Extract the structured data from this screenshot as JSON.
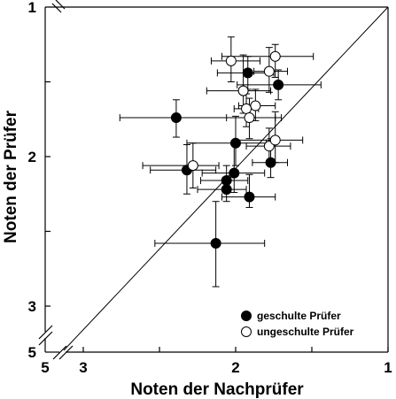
{
  "chart_data": {
    "type": "scatter",
    "title": "",
    "xlabel": "Noten der Nachprüfer",
    "ylabel": "Noten der Prüfer",
    "x_reversed": true,
    "y_reversed": true,
    "x_axis_break": true,
    "y_axis_break": true,
    "x_ticks": [
      {
        "label": "5",
        "value": 5
      },
      {
        "label": "3",
        "value": 3
      },
      {
        "label": "2",
        "value": 2
      },
      {
        "label": "1",
        "value": 1
      }
    ],
    "y_ticks": [
      {
        "label": "1",
        "value": 1
      },
      {
        "label": "2",
        "value": 2
      },
      {
        "label": "3",
        "value": 3
      },
      {
        "label": "5",
        "value": 5
      }
    ],
    "reference_line": "diagonal y = x",
    "legend_position": "bottom-right",
    "series": [
      {
        "name": "geschulte Prüfer",
        "marker": "filled-circle",
        "color": "#000000",
        "points": [
          {
            "x": 1.92,
            "y": 1.44,
            "x_lo": 1.75,
            "x_hi": 2.12,
            "y_lo": 1.33,
            "y_hi": 1.55
          },
          {
            "x": 1.72,
            "y": 1.52,
            "x_lo": 1.44,
            "x_hi": 1.99,
            "y_lo": 1.42,
            "y_hi": 1.62
          },
          {
            "x": 2.39,
            "y": 1.74,
            "x_lo": 2.76,
            "x_hi": 1.7,
            "y_lo": 1.62,
            "y_hi": 1.87
          },
          {
            "x": 2.0,
            "y": 1.91,
            "x_lo": 2.32,
            "x_hi": 1.8,
            "y_lo": 1.73,
            "y_hi": 2.06
          },
          {
            "x": 1.77,
            "y": 2.04,
            "x_lo": 1.89,
            "x_hi": 1.66,
            "y_lo": 1.88,
            "y_hi": 2.14
          },
          {
            "x": 2.32,
            "y": 2.09,
            "x_lo": 2.56,
            "x_hi": 2.13,
            "y_lo": 1.92,
            "y_hi": 2.25
          },
          {
            "x": 2.01,
            "y": 2.11,
            "x_lo": 2.22,
            "x_hi": 1.81,
            "y_lo": 1.92,
            "y_hi": 2.24
          },
          {
            "x": 2.06,
            "y": 2.16,
            "x_lo": 2.23,
            "x_hi": 1.92,
            "y_lo": 2.06,
            "y_hi": 2.24
          },
          {
            "x": 2.06,
            "y": 2.22,
            "x_lo": 2.25,
            "x_hi": 1.93,
            "y_lo": 2.15,
            "y_hi": 2.3
          },
          {
            "x": 1.91,
            "y": 2.27,
            "x_lo": 2.09,
            "x_hi": 1.74,
            "y_lo": 2.12,
            "y_hi": 2.34
          },
          {
            "x": 2.13,
            "y": 2.58,
            "x_lo": 2.53,
            "x_hi": 1.81,
            "y_lo": 2.3,
            "y_hi": 2.87
          }
        ]
      },
      {
        "name": "ungeschulte Prüfer",
        "marker": "open-circle",
        "color": "#000000",
        "points": [
          {
            "x": 2.03,
            "y": 1.36,
            "x_lo": 2.16,
            "x_hi": 1.84,
            "y_lo": 1.2,
            "y_hi": 1.5
          },
          {
            "x": 1.74,
            "y": 1.33,
            "x_lo": 2.09,
            "x_hi": 1.49,
            "y_lo": 1.25,
            "y_hi": 1.47
          },
          {
            "x": 1.78,
            "y": 1.43,
            "x_lo": 1.88,
            "x_hi": 1.66,
            "y_lo": 1.27,
            "y_hi": 1.57
          },
          {
            "x": 1.95,
            "y": 1.56,
            "x_lo": 2.19,
            "x_hi": 1.77,
            "y_lo": 1.32,
            "y_hi": 1.71
          },
          {
            "x": 1.87,
            "y": 1.66,
            "x_lo": 1.98,
            "x_hi": 1.74,
            "y_lo": 1.55,
            "y_hi": 1.76
          },
          {
            "x": 1.93,
            "y": 1.68,
            "x_lo": 2.01,
            "x_hi": 1.85,
            "y_lo": 1.58,
            "y_hi": 1.8
          },
          {
            "x": 1.91,
            "y": 1.74,
            "x_lo": 2.06,
            "x_hi": 1.74,
            "y_lo": 1.61,
            "y_hi": 1.88
          },
          {
            "x": 1.78,
            "y": 1.93,
            "x_lo": 1.93,
            "x_hi": 1.64,
            "y_lo": 1.81,
            "y_hi": 2.04
          },
          {
            "x": 1.74,
            "y": 1.89,
            "x_lo": 2.0,
            "x_hi": 1.56,
            "y_lo": 1.7,
            "y_hi": 2.04
          },
          {
            "x": 2.28,
            "y": 2.06,
            "x_lo": 2.61,
            "x_hi": 2.11,
            "y_lo": 1.91,
            "y_hi": 2.21
          }
        ]
      }
    ]
  }
}
